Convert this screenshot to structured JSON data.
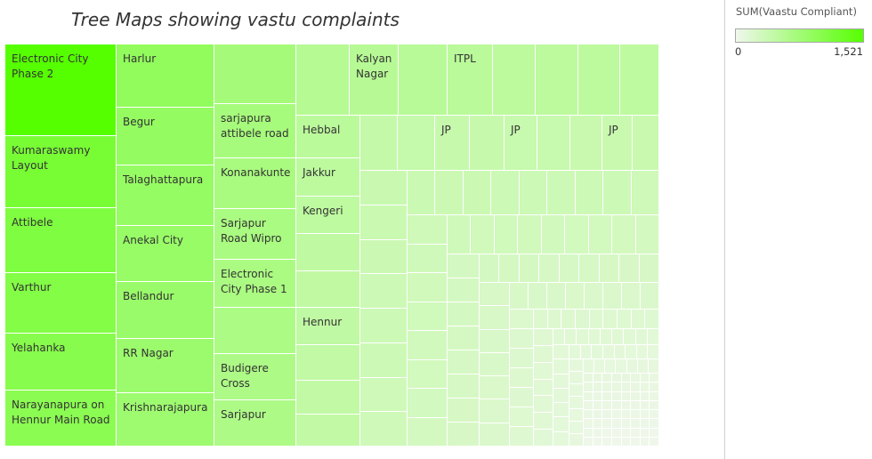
{
  "chart_data": {
    "type": "treemap",
    "title": "Tree Maps showing vastu  complaints",
    "measure": "SUM(Vaastu Compliant)",
    "color_range": {
      "min": 0,
      "max": 1521,
      "min_label": "0",
      "max_label": "1,521",
      "min_color": "#f0f7ec",
      "max_color": "#55ff00"
    },
    "labeled_items": [
      {
        "label": "Electronic City Phase 2",
        "value": 1521
      },
      {
        "label": "Kumaraswamy Layout",
        "value": 1180
      },
      {
        "label": "Attibele",
        "value": 1110
      },
      {
        "label": "Varthur",
        "value": 1070
      },
      {
        "label": "Yelahanka",
        "value": 1030
      },
      {
        "label": "Narayanapura on Hennur Main Road",
        "value": 990
      },
      {
        "label": "Harlur",
        "value": 930
      },
      {
        "label": "Begur",
        "value": 900
      },
      {
        "label": "Talaghattapura",
        "value": 880
      },
      {
        "label": "Anekal City",
        "value": 860
      },
      {
        "label": "Bellandur",
        "value": 840
      },
      {
        "label": "RR Nagar",
        "value": 820
      },
      {
        "label": "Krishnarajapura",
        "value": 800
      },
      {
        "label": "sarjapura attibele road",
        "value": 720
      },
      {
        "label": "Konanakunte",
        "value": 700
      },
      {
        "label": "Sarjapur Road Wipro",
        "value": 690
      },
      {
        "label": "Electronic City Phase 1",
        "value": 680
      },
      {
        "label": "Budigere Cross",
        "value": 660
      },
      {
        "label": "Sarjapur",
        "value": 650
      },
      {
        "label": "Kalyan Nagar",
        "value": 560
      },
      {
        "label": "ITPL",
        "value": 530
      },
      {
        "label": "Hebbal",
        "value": 520
      },
      {
        "label": "Jakkur",
        "value": 500
      },
      {
        "label": "Kengeri",
        "value": 490
      },
      {
        "label": "Hennur",
        "value": 470
      },
      {
        "label": "JP",
        "value": 410
      },
      {
        "label": "JP",
        "value": 400
      },
      {
        "label": "JP",
        "value": 395
      }
    ]
  }
}
